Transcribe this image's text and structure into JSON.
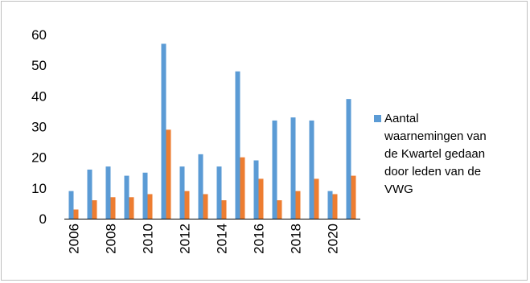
{
  "chart_data": {
    "type": "bar",
    "categories": [
      "2006",
      "2007",
      "2008",
      "2009",
      "2010",
      "2011",
      "2012",
      "2013",
      "2014",
      "2015",
      "2016",
      "2017",
      "2018",
      "2019",
      "2020",
      "2021"
    ],
    "x_tick_labels": [
      "2006",
      "2008",
      "2010",
      "2012",
      "2014",
      "2016",
      "2018",
      "2020"
    ],
    "series": [
      {
        "name": "Aantal waarnemingen van de Kwartel gedaan door leden van de VWG",
        "color": "#5b9bd5",
        "values": [
          9,
          16,
          17,
          14,
          15,
          57,
          17,
          21,
          17,
          48,
          19,
          32,
          33,
          32,
          9,
          39
        ]
      },
      {
        "color": "#ed7d31",
        "values": [
          3,
          6,
          7,
          7,
          8,
          29,
          9,
          8,
          6,
          20,
          13,
          6,
          9,
          13,
          8,
          14
        ]
      }
    ],
    "ylim": [
      0,
      60
    ],
    "y_ticks": [
      "0",
      "10",
      "20",
      "30",
      "40",
      "50",
      "60"
    ],
    "grid": false,
    "legend_position": "right",
    "legend_lines": [
      "Aantal",
      "waarnemingen van",
      "de Kwartel gedaan",
      "door leden van de",
      "VWG"
    ]
  }
}
